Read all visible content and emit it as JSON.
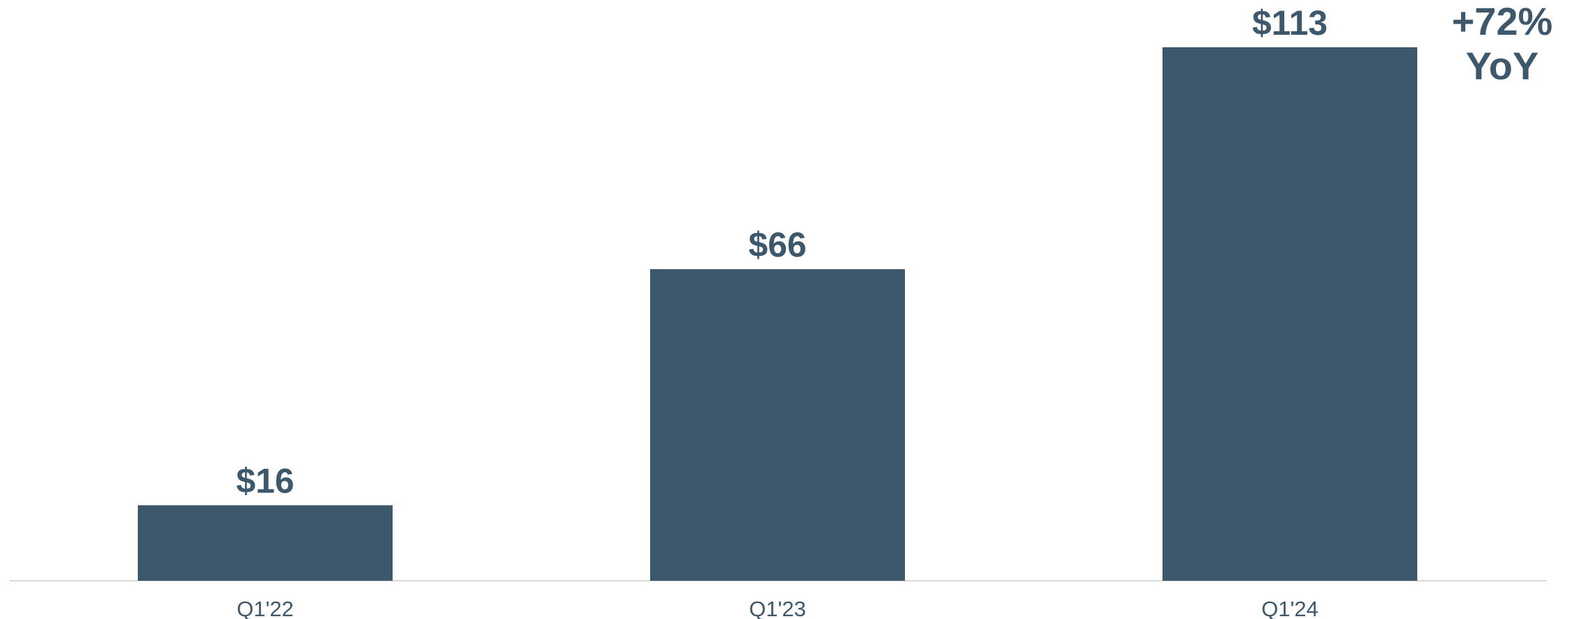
{
  "chart_data": {
    "type": "bar",
    "categories": [
      "Q1'22",
      "Q1'23",
      "Q1'24"
    ],
    "values": [
      16,
      66,
      113
    ],
    "data_labels": [
      "$16",
      "$66",
      "$113"
    ],
    "annotation": [
      "+72%",
      "YoY"
    ],
    "ylim": [
      0,
      113
    ],
    "grid": false,
    "legend": "none",
    "bar_color": "#3e586b"
  }
}
